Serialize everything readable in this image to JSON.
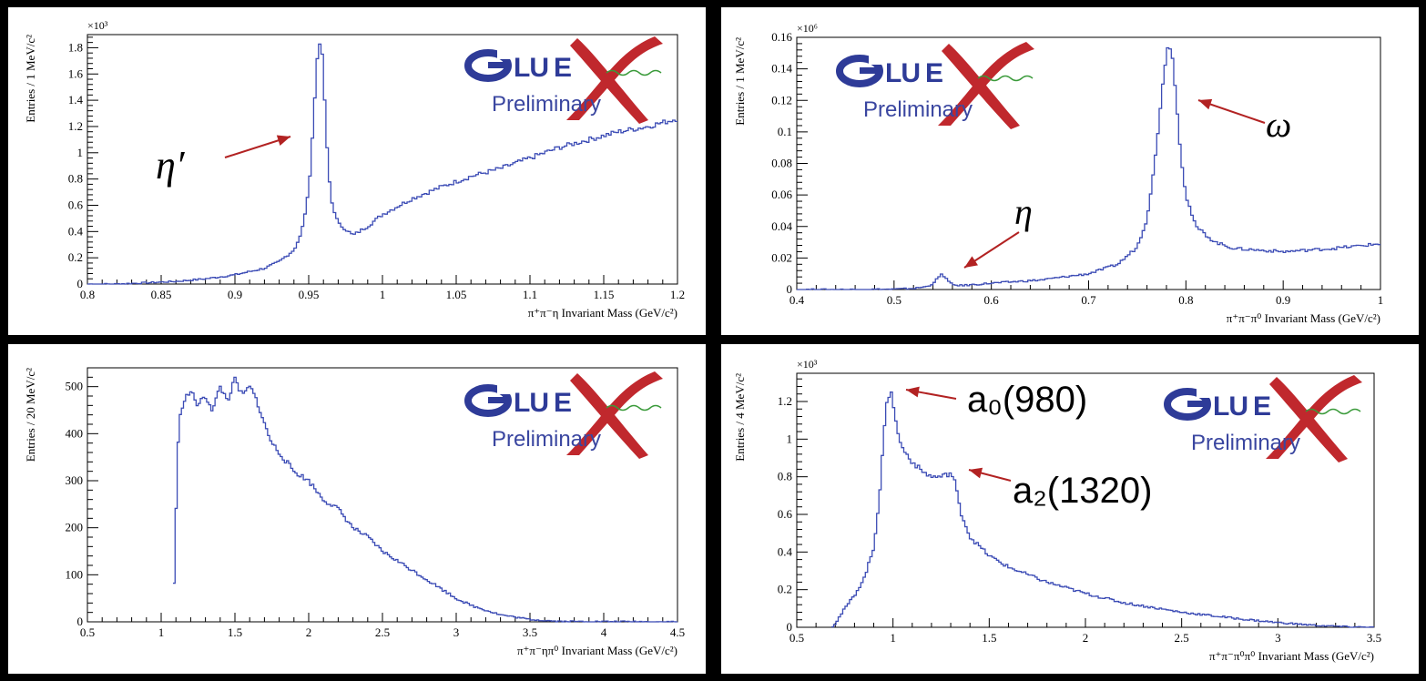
{
  "colors": {
    "line": "#3b4bb5",
    "arrow": "#b22222",
    "logo_blue": "#2e3b98",
    "logo_red": "#c0282d",
    "logo_green": "#3a9a3a"
  },
  "logo": {
    "g": "G",
    "lu": "LU",
    "e": "E",
    "x": "X",
    "preliminary": "Preliminary"
  },
  "chart_data": [
    {
      "type": "line",
      "xlabel": "π⁺π⁻η Invariant Mass (GeV/c²)",
      "ylabel": "Entries / 1 MeV/c²",
      "y_multiplier": "×10³",
      "xlim": [
        0.8,
        1.2
      ],
      "ylim": [
        0,
        1.9
      ],
      "xticks": [
        0.8,
        0.85,
        0.9,
        0.95,
        1,
        1.05,
        1.1,
        1.15,
        1.2
      ],
      "xtick_labels": [
        "0.8",
        "0.85",
        "0.9",
        "0.95",
        "1",
        "1.05",
        "1.1",
        "1.15",
        "1.2"
      ],
      "yticks": [
        0,
        0.2,
        0.4,
        0.6,
        0.8,
        1,
        1.2,
        1.4,
        1.6,
        1.8
      ],
      "ytick_labels": [
        "0",
        "0.2",
        "0.4",
        "0.6",
        "0.8",
        "1",
        "1.2",
        "1.4",
        "1.6",
        "1.8"
      ],
      "annotations": [
        {
          "text": "η′",
          "x": 0.95,
          "y": 1.18
        }
      ],
      "x": [
        0.8,
        0.82,
        0.84,
        0.86,
        0.88,
        0.9,
        0.92,
        0.93,
        0.94,
        0.945,
        0.95,
        0.953,
        0.956,
        0.958,
        0.96,
        0.962,
        0.965,
        0.97,
        0.975,
        0.98,
        0.99,
        1.0,
        1.02,
        1.04,
        1.06,
        1.08,
        1.1,
        1.12,
        1.14,
        1.16,
        1.18,
        1.2
      ],
      "y": [
        0,
        0.0,
        0.01,
        0.02,
        0.04,
        0.07,
        0.12,
        0.17,
        0.26,
        0.38,
        0.7,
        1.2,
        1.75,
        1.88,
        1.62,
        1.1,
        0.65,
        0.46,
        0.42,
        0.37,
        0.44,
        0.53,
        0.65,
        0.74,
        0.82,
        0.88,
        0.96,
        1.04,
        1.1,
        1.16,
        1.2,
        1.26
      ]
    },
    {
      "type": "line",
      "xlabel": "π⁺π⁻π⁰ Invariant Mass (GeV/c²)",
      "ylabel": "Entries / 1 MeV/c²",
      "y_multiplier": "×10⁶",
      "xlim": [
        0.4,
        1.0
      ],
      "ylim": [
        0,
        0.16
      ],
      "xticks": [
        0.4,
        0.5,
        0.6,
        0.7,
        0.8,
        0.9,
        1.0
      ],
      "xtick_labels": [
        "0.4",
        "0.5",
        "0.6",
        "0.7",
        "0.8",
        "0.9",
        "1"
      ],
      "yticks": [
        0,
        0.02,
        0.04,
        0.06,
        0.08,
        0.1,
        0.12,
        0.14,
        0.16
      ],
      "ytick_labels": [
        "0",
        "0.02",
        "0.04",
        "0.06",
        "0.08",
        "0.1",
        "0.12",
        "0.14",
        "0.16"
      ],
      "annotations": [
        {
          "text": "ω",
          "x": 0.78,
          "y": 0.155
        },
        {
          "text": "η",
          "x": 0.548,
          "y": 0.01
        }
      ],
      "x": [
        0.4,
        0.45,
        0.5,
        0.52,
        0.535,
        0.54,
        0.545,
        0.548,
        0.552,
        0.556,
        0.56,
        0.57,
        0.6,
        0.65,
        0.7,
        0.73,
        0.75,
        0.76,
        0.77,
        0.775,
        0.78,
        0.783,
        0.786,
        0.79,
        0.795,
        0.8,
        0.81,
        0.83,
        0.85,
        0.9,
        0.95,
        1.0
      ],
      "y": [
        0,
        0,
        0.0002,
        0.0007,
        0.002,
        0.004,
        0.007,
        0.0095,
        0.0085,
        0.005,
        0.003,
        0.0025,
        0.004,
        0.006,
        0.01,
        0.016,
        0.027,
        0.045,
        0.09,
        0.125,
        0.15,
        0.156,
        0.15,
        0.12,
        0.085,
        0.06,
        0.04,
        0.03,
        0.026,
        0.024,
        0.026,
        0.029
      ]
    },
    {
      "type": "line",
      "xlabel": "π⁺π⁻ηπ⁰ Invariant Mass (GeV/c²)",
      "ylabel": "Entries / 20 MeV/c²",
      "xlim": [
        0.5,
        4.5
      ],
      "ylim": [
        0,
        540
      ],
      "xticks": [
        0.5,
        1,
        1.5,
        2,
        2.5,
        3,
        3.5,
        4,
        4.5
      ],
      "xtick_labels": [
        "0.5",
        "1",
        "1.5",
        "2",
        "2.5",
        "3",
        "3.5",
        "4",
        "4.5"
      ],
      "yticks": [
        0,
        100,
        200,
        300,
        400,
        500
      ],
      "ytick_labels": [
        "0",
        "100",
        "200",
        "300",
        "400",
        "500"
      ],
      "x": [
        1.08,
        1.1,
        1.12,
        1.15,
        1.2,
        1.25,
        1.3,
        1.35,
        1.4,
        1.45,
        1.5,
        1.55,
        1.6,
        1.65,
        1.7,
        1.75,
        1.8,
        1.9,
        2.0,
        2.1,
        2.2,
        2.3,
        2.4,
        2.5,
        2.6,
        2.7,
        2.8,
        2.9,
        3.0,
        3.1,
        3.2,
        3.3,
        3.4,
        3.5,
        3.6,
        3.7,
        4.5
      ],
      "y": [
        0,
        230,
        420,
        470,
        490,
        460,
        480,
        450,
        500,
        470,
        515,
        480,
        500,
        470,
        420,
        380,
        360,
        320,
        300,
        260,
        240,
        200,
        180,
        150,
        130,
        110,
        90,
        70,
        50,
        35,
        25,
        15,
        10,
        5,
        3,
        1,
        0
      ]
    },
    {
      "type": "line",
      "xlabel": "π⁺π⁻π⁰π⁰ Invariant Mass (GeV/c²)",
      "ylabel": "Entries / 4 MeV/c²",
      "y_multiplier": "×10³",
      "xlim": [
        0.5,
        3.5
      ],
      "ylim": [
        0,
        1.35
      ],
      "xticks": [
        0.5,
        1,
        1.5,
        2,
        2.5,
        3,
        3.5
      ],
      "xtick_labels": [
        "0.5",
        "1",
        "1.5",
        "2",
        "2.5",
        "3",
        "3.5"
      ],
      "yticks": [
        0,
        0.2,
        0.4,
        0.6,
        0.8,
        1,
        1.2
      ],
      "ytick_labels": [
        "0",
        "0.2",
        "0.4",
        "0.6",
        "0.8",
        "1",
        "1.2"
      ],
      "annotations": [
        {
          "text": "a₀(980)",
          "x": 0.99,
          "y": 1.26
        },
        {
          "text": "a₂(1320)",
          "x": 1.32,
          "y": 0.82
        }
      ],
      "x": [
        0.68,
        0.7,
        0.75,
        0.8,
        0.85,
        0.9,
        0.93,
        0.95,
        0.97,
        0.99,
        1.0,
        1.02,
        1.05,
        1.1,
        1.15,
        1.2,
        1.25,
        1.3,
        1.32,
        1.35,
        1.4,
        1.5,
        1.6,
        1.8,
        2.0,
        2.2,
        2.5,
        2.8,
        3.0,
        3.2,
        3.35,
        3.5
      ],
      "y": [
        0,
        0.02,
        0.1,
        0.17,
        0.26,
        0.42,
        0.7,
        1.0,
        1.2,
        1.27,
        1.2,
        1.05,
        0.95,
        0.88,
        0.83,
        0.8,
        0.8,
        0.82,
        0.78,
        0.62,
        0.48,
        0.38,
        0.32,
        0.24,
        0.18,
        0.13,
        0.08,
        0.045,
        0.025,
        0.01,
        0.003,
        0
      ]
    }
  ]
}
